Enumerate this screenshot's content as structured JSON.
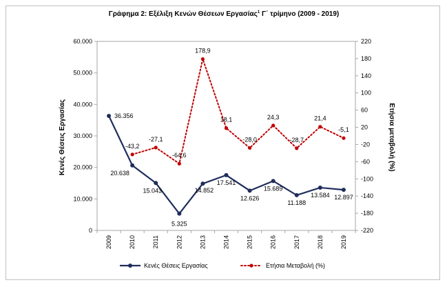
{
  "chart_data": {
    "type": "line",
    "title": "Γράφημα 2: Εξέλιξη Κενών Θέσεων Εργασίας",
    "title_superscript": "1",
    "title_suffix": " Γ΄ τρίμηνο (2009 - 2019)",
    "categories": [
      "2009",
      "2010",
      "2011",
      "2012",
      "2013",
      "2014",
      "2015",
      "2016",
      "2017",
      "2018",
      "2019"
    ],
    "ylabel": "Κενές Θέσεις Εργασίας",
    "y2label": "Ετήσια μεταβολή (%)",
    "ylim": [
      0,
      60000
    ],
    "y2lim": [
      -220,
      220
    ],
    "y_ticks": [
      "0",
      "10.000",
      "20.000",
      "30.000",
      "40.000",
      "50.000",
      "60.000"
    ],
    "y_tick_values": [
      0,
      10000,
      20000,
      30000,
      40000,
      50000,
      60000
    ],
    "y2_ticks": [
      "-220",
      "-180",
      "-140",
      "-100",
      "-60",
      "-20",
      "20",
      "60",
      "100",
      "140",
      "180",
      "220"
    ],
    "y2_tick_values": [
      -220,
      -180,
      -140,
      -100,
      -60,
      -20,
      20,
      60,
      100,
      140,
      180,
      220
    ],
    "grid": false,
    "legend_position": "bottom",
    "series": [
      {
        "name": "Κενές Θέσεις Εργασίας",
        "axis": "left",
        "color": "#1f2d5c",
        "style": "solid",
        "marker": "circle",
        "values": [
          36356,
          20638,
          15043,
          5325,
          14852,
          17541,
          12626,
          15689,
          11188,
          13584,
          12897
        ],
        "labels": [
          "36.356",
          "20.638",
          "15.043",
          "5.325",
          "14.852",
          "17.541",
          "12.626",
          "15.689",
          "11.188",
          "13.584",
          "12.897"
        ]
      },
      {
        "name": "Ετήσια Μεταβολή (%)",
        "axis": "right",
        "color": "#c00000",
        "style": "dotted",
        "marker": "circle",
        "values": [
          null,
          -43.2,
          -27.1,
          -64.6,
          178.9,
          18.1,
          -28.0,
          24.3,
          -28.7,
          21.4,
          -5.1
        ],
        "labels": [
          "",
          "-43,2",
          "-27,1",
          "-64,6",
          "178,9",
          "18,1",
          "-28,0",
          "24,3",
          "-28,7",
          "21,4",
          "-5,1"
        ]
      }
    ]
  }
}
